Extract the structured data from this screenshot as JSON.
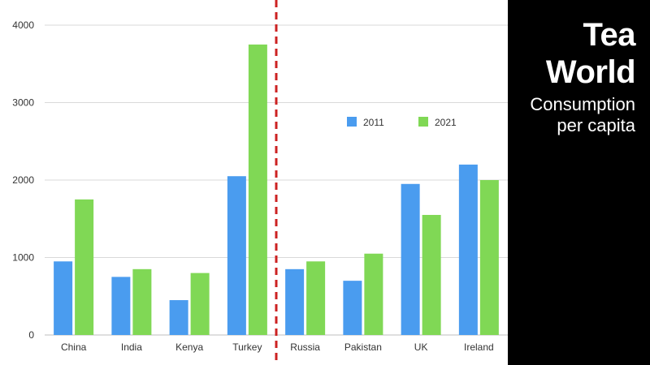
{
  "chart_data": {
    "type": "bar",
    "categories": [
      "China",
      "India",
      "Kenya",
      "Turkey",
      "Russia",
      "Pakistan",
      "UK",
      "Ireland"
    ],
    "series": [
      {
        "name": "2011",
        "color": "#4a9cef",
        "values": [
          950,
          750,
          450,
          2050,
          850,
          700,
          1950,
          2200
        ]
      },
      {
        "name": "2021",
        "color": "#80d855",
        "values": [
          1750,
          850,
          800,
          3750,
          950,
          1050,
          1550,
          2000
        ]
      }
    ],
    "yticks": [
      0,
      1000,
      2000,
      3000,
      4000
    ],
    "ylim": [
      0,
      4000
    ],
    "grid": true,
    "legend_position": "upper-right",
    "divider_after_category": "Turkey",
    "divider_color": "#cc2222",
    "axis_text_color": "#333333",
    "grid_color": "#d9d9d9"
  },
  "panel": {
    "title_line1": "Tea",
    "title_line2": "World",
    "subtitle_line1": "Consumption",
    "subtitle_line2": "per capita"
  }
}
